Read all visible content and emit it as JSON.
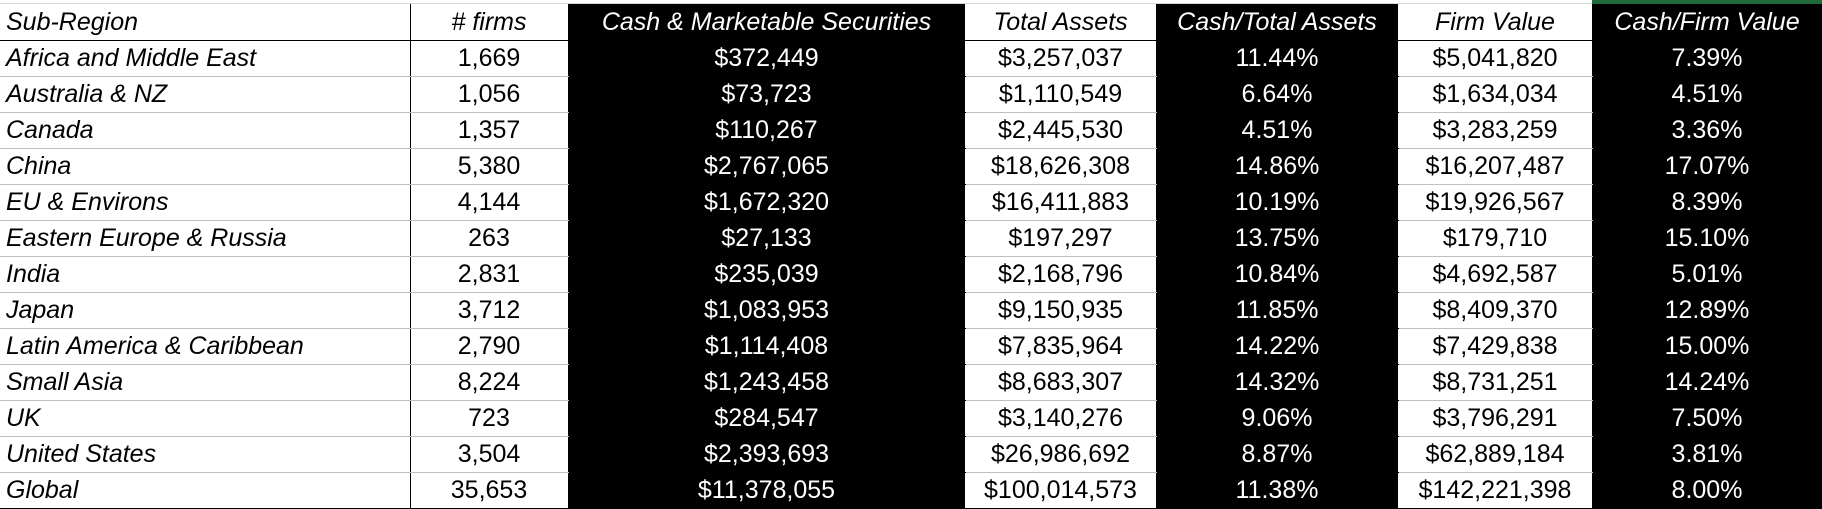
{
  "columns": [
    "Sub-Region",
    "# firms",
    "Cash & Marketable Securities",
    "Total Assets",
    "Cash/Total Assets",
    "Firm Value",
    "Cash/Firm Value"
  ],
  "rows": [
    [
      "Africa and Middle East",
      "1,669",
      "$372,449",
      "$3,257,037",
      "11.44%",
      "$5,041,820",
      "7.39%"
    ],
    [
      "Australia & NZ",
      "1,056",
      "$73,723",
      "$1,110,549",
      "6.64%",
      "$1,634,034",
      "4.51%"
    ],
    [
      "Canada",
      "1,357",
      "$110,267",
      "$2,445,530",
      "4.51%",
      "$3,283,259",
      "3.36%"
    ],
    [
      "China",
      "5,380",
      "$2,767,065",
      "$18,626,308",
      "14.86%",
      "$16,207,487",
      "17.07%"
    ],
    [
      "EU & Environs",
      "4,144",
      "$1,672,320",
      "$16,411,883",
      "10.19%",
      "$19,926,567",
      "8.39%"
    ],
    [
      "Eastern Europe & Russia",
      "263",
      "$27,133",
      "$197,297",
      "13.75%",
      "$179,710",
      "15.10%"
    ],
    [
      "India",
      "2,831",
      "$235,039",
      "$2,168,796",
      "10.84%",
      "$4,692,587",
      "5.01%"
    ],
    [
      "Japan",
      "3,712",
      "$1,083,953",
      "$9,150,935",
      "11.85%",
      "$8,409,370",
      "12.89%"
    ],
    [
      "Latin America & Caribbean",
      "2,790",
      "$1,114,408",
      "$7,835,964",
      "14.22%",
      "$7,429,838",
      "15.00%"
    ],
    [
      "Small Asia",
      "8,224",
      "$1,243,458",
      "$8,683,307",
      "14.32%",
      "$8,731,251",
      "14.24%"
    ],
    [
      "UK",
      "723",
      "$284,547",
      "$3,140,276",
      "9.06%",
      "$3,796,291",
      "7.50%"
    ],
    [
      "United States",
      "3,504",
      "$2,393,693",
      "$26,986,692",
      "8.87%",
      "$62,889,184",
      "3.81%"
    ],
    [
      "Global",
      "35,653",
      "$11,378,055",
      "$100,014,573",
      "11.38%",
      "$142,221,398",
      "8.00%"
    ]
  ],
  "colors": {
    "highlight_fill": "#000000",
    "highlight_text": "#ffffff",
    "accent": "#1f6b3a"
  }
}
